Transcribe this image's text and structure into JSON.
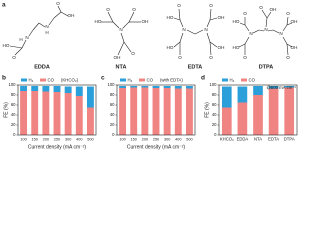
{
  "panel_labels": [
    "a",
    "b",
    "c",
    "d"
  ],
  "molecules": [
    {
      "name": "EDDA",
      "color": "#d8302b",
      "atoms": [
        "O",
        "OH",
        "N",
        "H",
        "N",
        "H",
        "HO",
        "O"
      ]
    },
    {
      "name": "NTA",
      "color": "#d8302b",
      "atoms": [
        "HO",
        "O",
        "N",
        "O",
        "OH",
        "O",
        "OH"
      ]
    },
    {
      "name": "EDTA",
      "color": "#d8302b",
      "atoms": [
        "HO",
        "O",
        "N",
        "N",
        "O",
        "OH",
        "HO",
        "O",
        "O",
        "OH"
      ]
    },
    {
      "name": "DTPA",
      "color": "#d8302b",
      "atoms": [
        "HO",
        "O",
        "N",
        "O",
        "OH",
        "N",
        "N",
        "O",
        "OH",
        "HO",
        "O",
        "O",
        "OH"
      ]
    }
  ],
  "chart_data": [
    {
      "type": "bar",
      "stacked": true,
      "categories": [
        "100",
        "150",
        "200",
        "250",
        "300",
        "400",
        "500"
      ],
      "series": [
        {
          "name": "H₂",
          "color": "#2b9fd9",
          "values": [
            10,
            10,
            11,
            12,
            13,
            19,
            42
          ]
        },
        {
          "name": "CO",
          "color": "#f08482",
          "values": [
            88,
            88,
            87,
            86,
            84,
            78,
            55
          ]
        }
      ],
      "ylim": [
        0,
        100
      ],
      "yticks": [
        0,
        20,
        40,
        60,
        80,
        100
      ],
      "y_label": "FE (%)",
      "x_label": "Current density (mA cm⁻²)",
      "annotation": "(KHCO₃)"
    },
    {
      "type": "bar",
      "stacked": true,
      "categories": [
        "100",
        "150",
        "200",
        "250",
        "300",
        "400",
        "500"
      ],
      "series": [
        {
          "name": "H₂",
          "color": "#2b9fd9",
          "values": [
            4,
            3,
            3,
            4,
            4,
            5,
            5
          ]
        },
        {
          "name": "CO",
          "color": "#f08482",
          "values": [
            94,
            95,
            95,
            94,
            94,
            93,
            93
          ]
        }
      ],
      "ylim": [
        0,
        100
      ],
      "yticks": [
        0,
        20,
        40,
        60,
        80,
        100
      ],
      "x_label": "Current density (mA cm⁻²)",
      "annotation": "(with EDTA)"
    },
    {
      "type": "bar",
      "stacked": true,
      "categories": [
        "KHCO₃",
        "EDDA",
        "NTA",
        "EDTA",
        "DTPA"
      ],
      "series": [
        {
          "name": "H₂",
          "color": "#2b9fd9",
          "values": [
            42,
            32,
            18,
            5,
            3
          ]
        },
        {
          "name": "CO",
          "color": "#f08482",
          "values": [
            55,
            65,
            80,
            93,
            95
          ]
        }
      ],
      "ylim": [
        0,
        100
      ],
      "yticks": [
        0,
        20,
        40,
        60,
        80,
        100
      ],
      "y_label": "FE (%)",
      "annotation": "@500 mA cm⁻²"
    }
  ]
}
